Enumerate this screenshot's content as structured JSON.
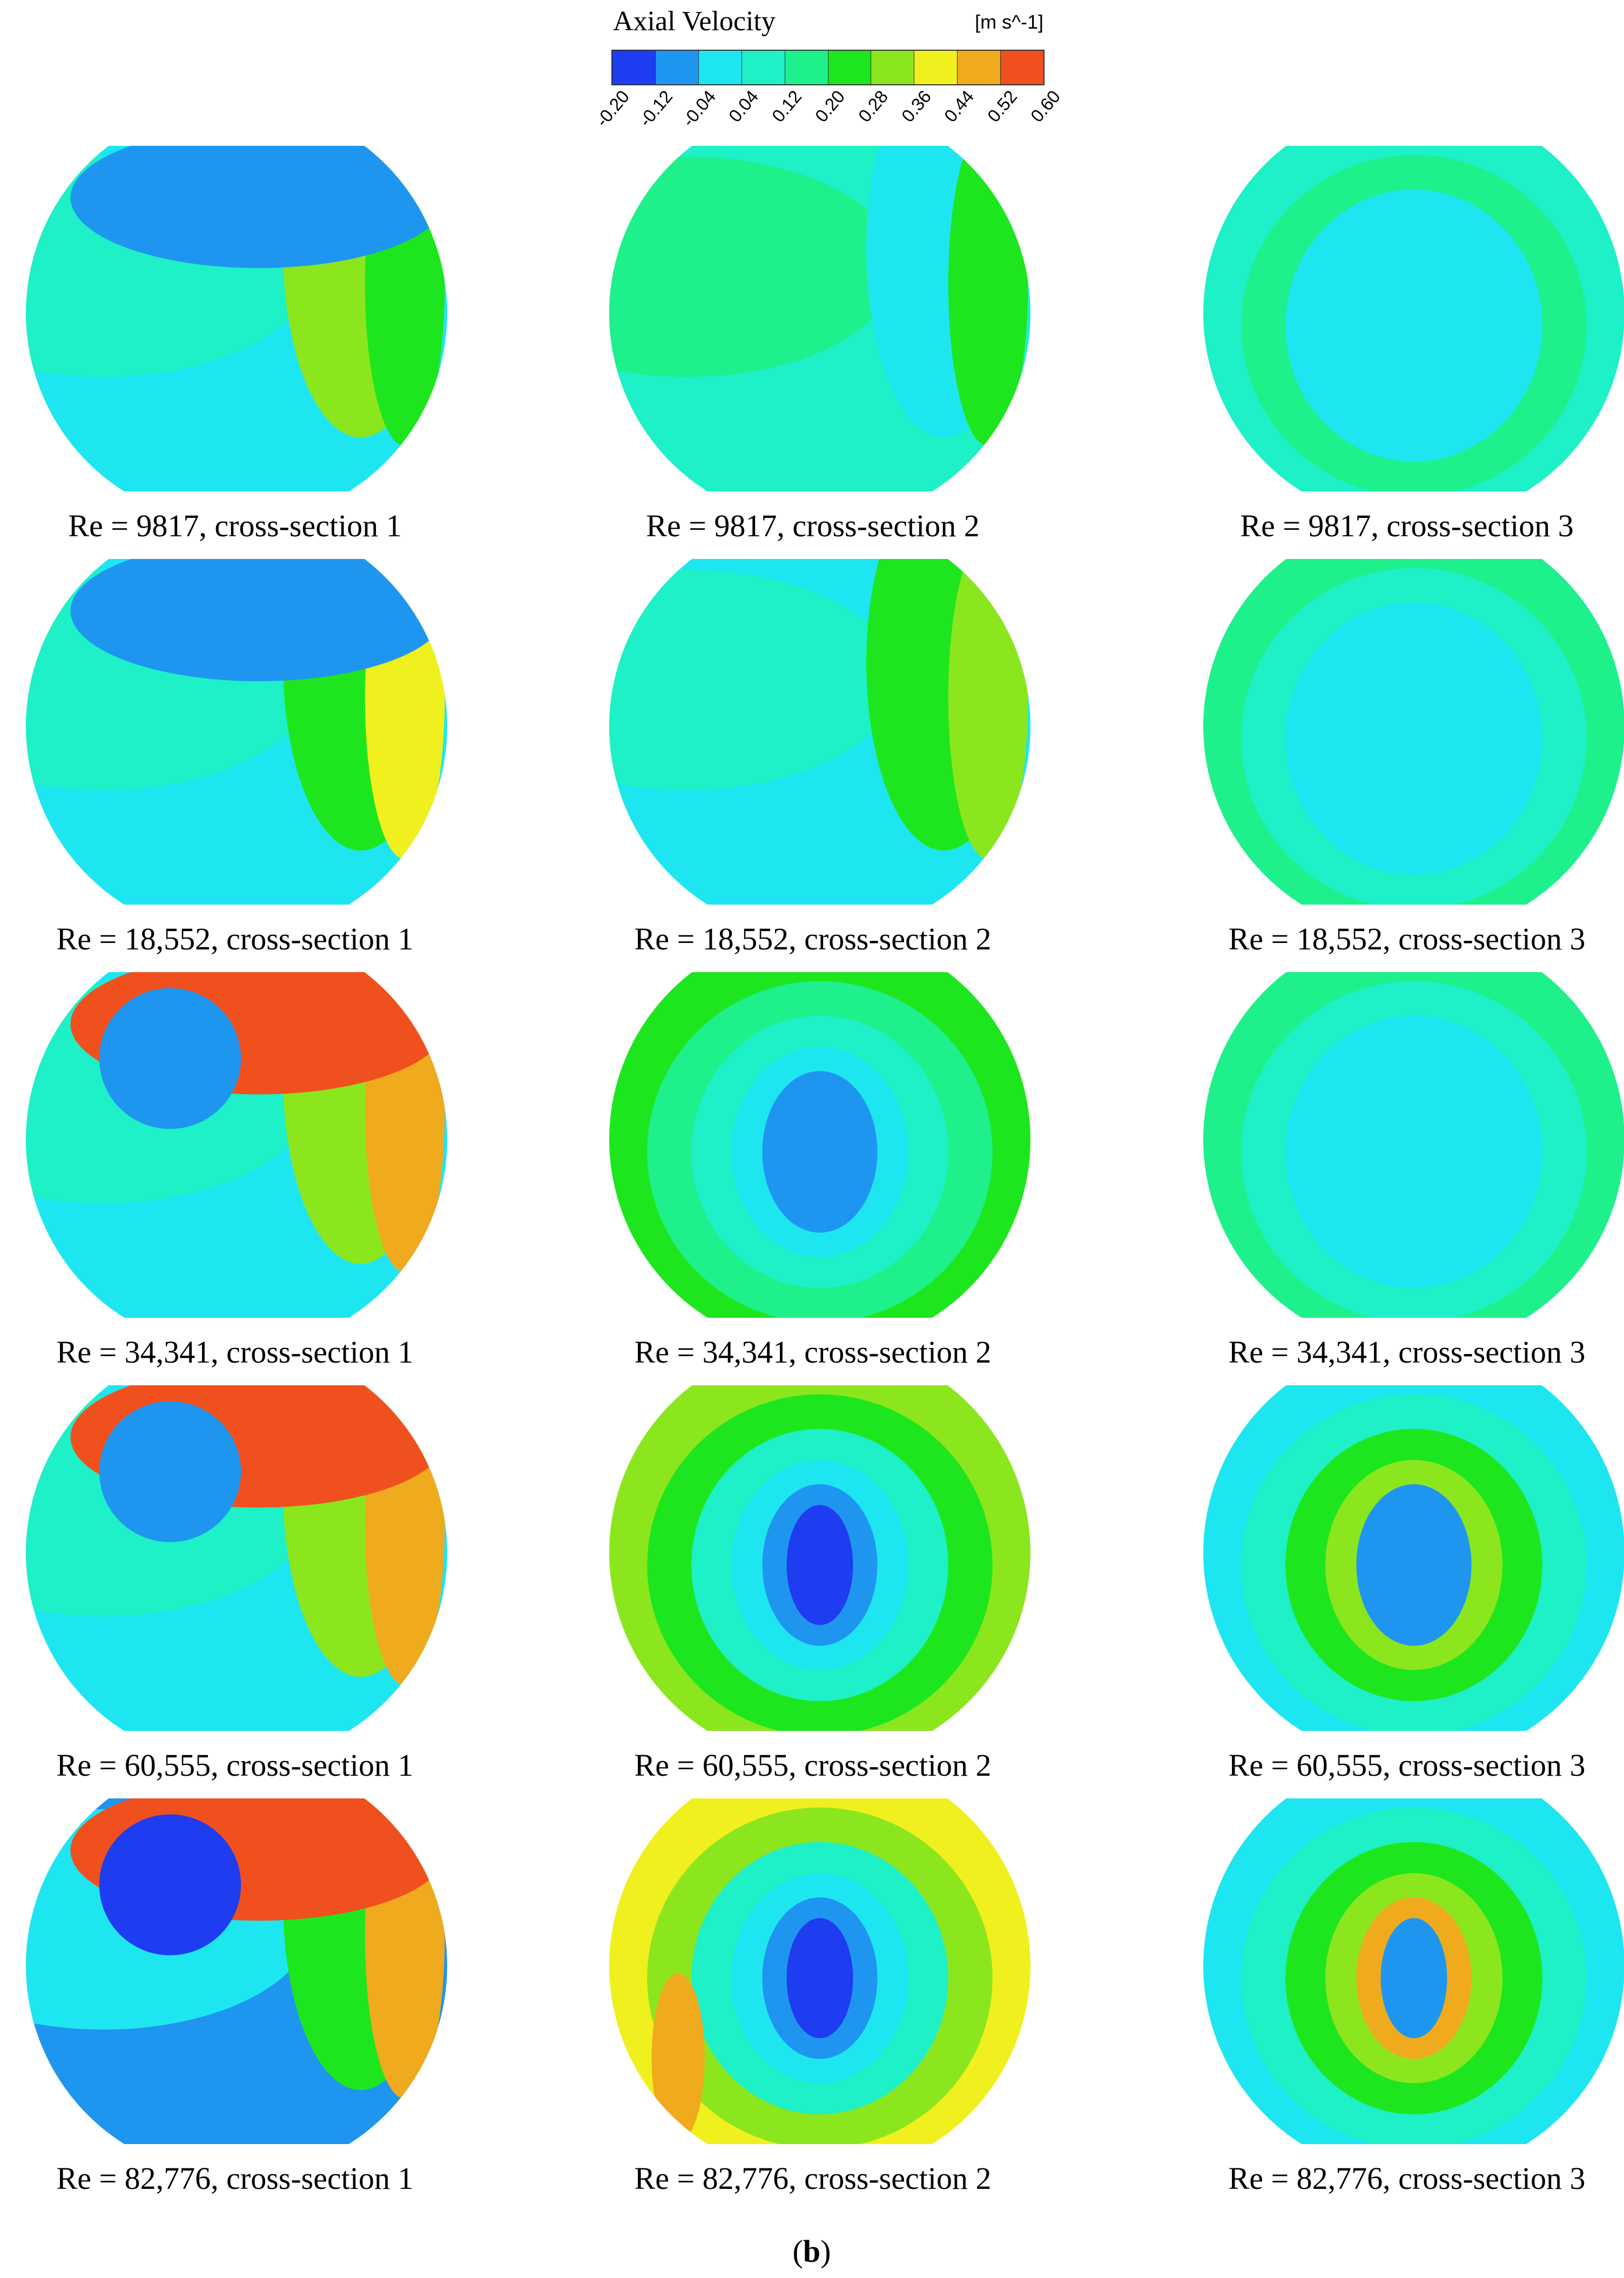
{
  "legend": {
    "title": "Axial Velocity",
    "unit": "[m s^-1]",
    "ticks": [
      "-0.20",
      "-0.12",
      "-0.04",
      "0.04",
      "0.12",
      "0.20",
      "0.28",
      "0.36",
      "0.44",
      "0.52",
      "0.60"
    ],
    "colors": [
      "#1e3cf0",
      "#1e96f0",
      "#1ee6f0",
      "#1ef0c8",
      "#1ef08c",
      "#1ee61e",
      "#8ce61e",
      "#f0f01e",
      "#f0aa1e",
      "#f0501e"
    ]
  },
  "panels": [
    {
      "caption": "Re = 9817, cross-section 1",
      "base": "#1ee6f0",
      "blobs": [
        "#1ef0c8",
        "#8ce61e",
        "#1ee61e",
        "#1e96f0"
      ]
    },
    {
      "caption": "Re = 9817, cross-section 2",
      "base": "#1ef0c8",
      "blobs": [
        "#1ef08c",
        "#1ee6f0",
        "#1ee61e"
      ]
    },
    {
      "caption": "Re = 9817, cross-section 3",
      "base": "#1ef0c8",
      "blobs": [
        "#1ef08c",
        "#1ee6f0"
      ]
    },
    {
      "caption": "Re = 18,552, cross-section 1",
      "base": "#1ee6f0",
      "blobs": [
        "#1ef0c8",
        "#1ee61e",
        "#f0f01e",
        "#1e96f0"
      ]
    },
    {
      "caption": "Re = 18,552, cross-section 2",
      "base": "#1ee6f0",
      "blobs": [
        "#1ef0c8",
        "#1ee61e",
        "#8ce61e"
      ]
    },
    {
      "caption": "Re = 18,552, cross-section 3",
      "base": "#1ef08c",
      "blobs": [
        "#1ef0c8",
        "#1ee6f0"
      ]
    },
    {
      "caption": "Re = 34,341, cross-section 1",
      "base": "#1ee6f0",
      "blobs": [
        "#1ef0c8",
        "#8ce61e",
        "#f0aa1e",
        "#f0501e",
        "#1e96f0"
      ]
    },
    {
      "caption": "Re = 34,341, cross-section 2",
      "base": "#1ee61e",
      "blobs": [
        "#1ef08c",
        "#1ef0c8",
        "#1ee6f0",
        "#1e96f0"
      ]
    },
    {
      "caption": "Re = 34,341, cross-section 3",
      "base": "#1ef08c",
      "blobs": [
        "#1ef0c8",
        "#1ee6f0"
      ]
    },
    {
      "caption": "Re = 60,555, cross-section 1",
      "base": "#1ee6f0",
      "blobs": [
        "#1ef0c8",
        "#8ce61e",
        "#f0aa1e",
        "#f0501e",
        "#1e96f0"
      ]
    },
    {
      "caption": "Re = 60,555, cross-section 2",
      "base": "#8ce61e",
      "blobs": [
        "#1ee61e",
        "#1ef0c8",
        "#1ee6f0",
        "#1e96f0",
        "#1e3cf0"
      ]
    },
    {
      "caption": "Re = 60,555, cross-section 3",
      "base": "#1ee6f0",
      "blobs": [
        "#1ef0c8",
        "#1ee61e",
        "#8ce61e",
        "#1e96f0"
      ]
    },
    {
      "caption": "Re = 82,776, cross-section 1",
      "base": "#1e96f0",
      "blobs": [
        "#1ee6f0",
        "#1ee61e",
        "#f0aa1e",
        "#f0501e",
        "#1e3cf0"
      ]
    },
    {
      "caption": "Re = 82,776, cross-section 2",
      "base": "#f0f01e",
      "blobs": [
        "#8ce61e",
        "#1ef0c8",
        "#1ee6f0",
        "#1e96f0",
        "#1e3cf0",
        "#f0aa1e"
      ]
    },
    {
      "caption": "Re = 82,776, cross-section 3",
      "base": "#1ee6f0",
      "blobs": [
        "#1ef0c8",
        "#1ee61e",
        "#8ce61e",
        "#f0aa1e",
        "#1e96f0"
      ]
    }
  ],
  "figure_label": "b"
}
